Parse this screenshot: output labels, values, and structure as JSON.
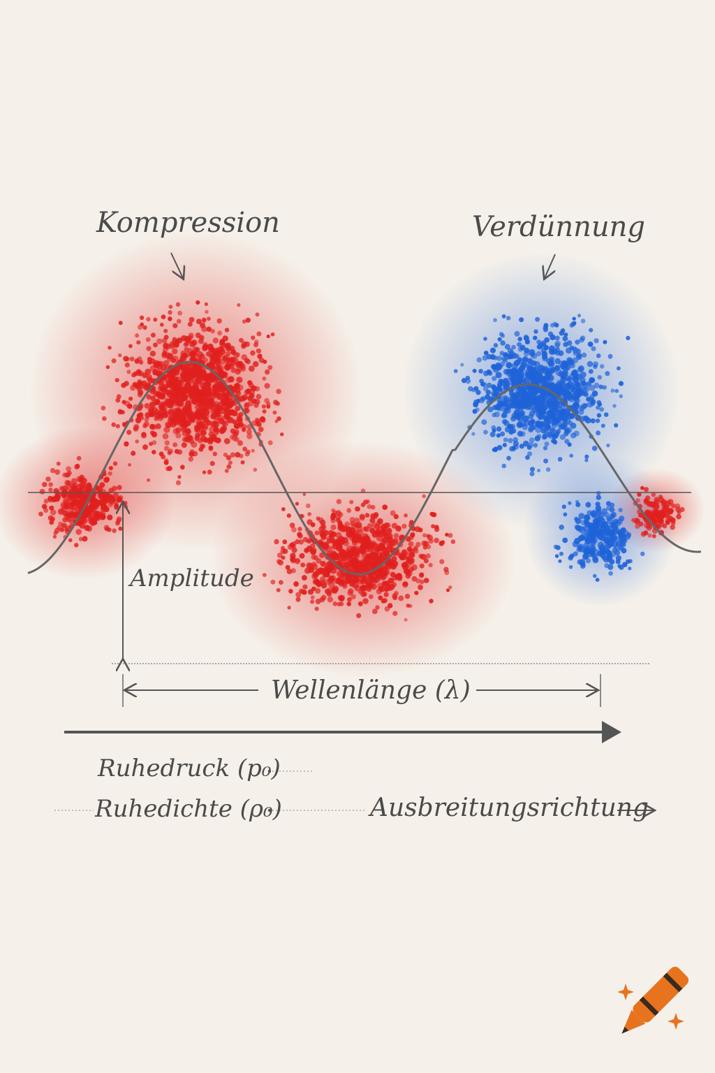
{
  "labels": {
    "compression": "Kompression",
    "rarefaction": "Verdünnung",
    "amplitude": "Amplitude",
    "wavelength": "Wellenlänge (λ)",
    "rest_pressure": "Ruhedruck (p₀)",
    "rest_density": "Ruhedichte (ρ₀)",
    "propagation": "Ausbreitungsrichtung"
  },
  "colors": {
    "compression": "#e0201e",
    "rarefaction": "#1f63d8",
    "line": "#555555",
    "paper": "#f5f1ea",
    "logo": "#e8731e"
  },
  "icons": {
    "logo": "crayon-icon"
  }
}
